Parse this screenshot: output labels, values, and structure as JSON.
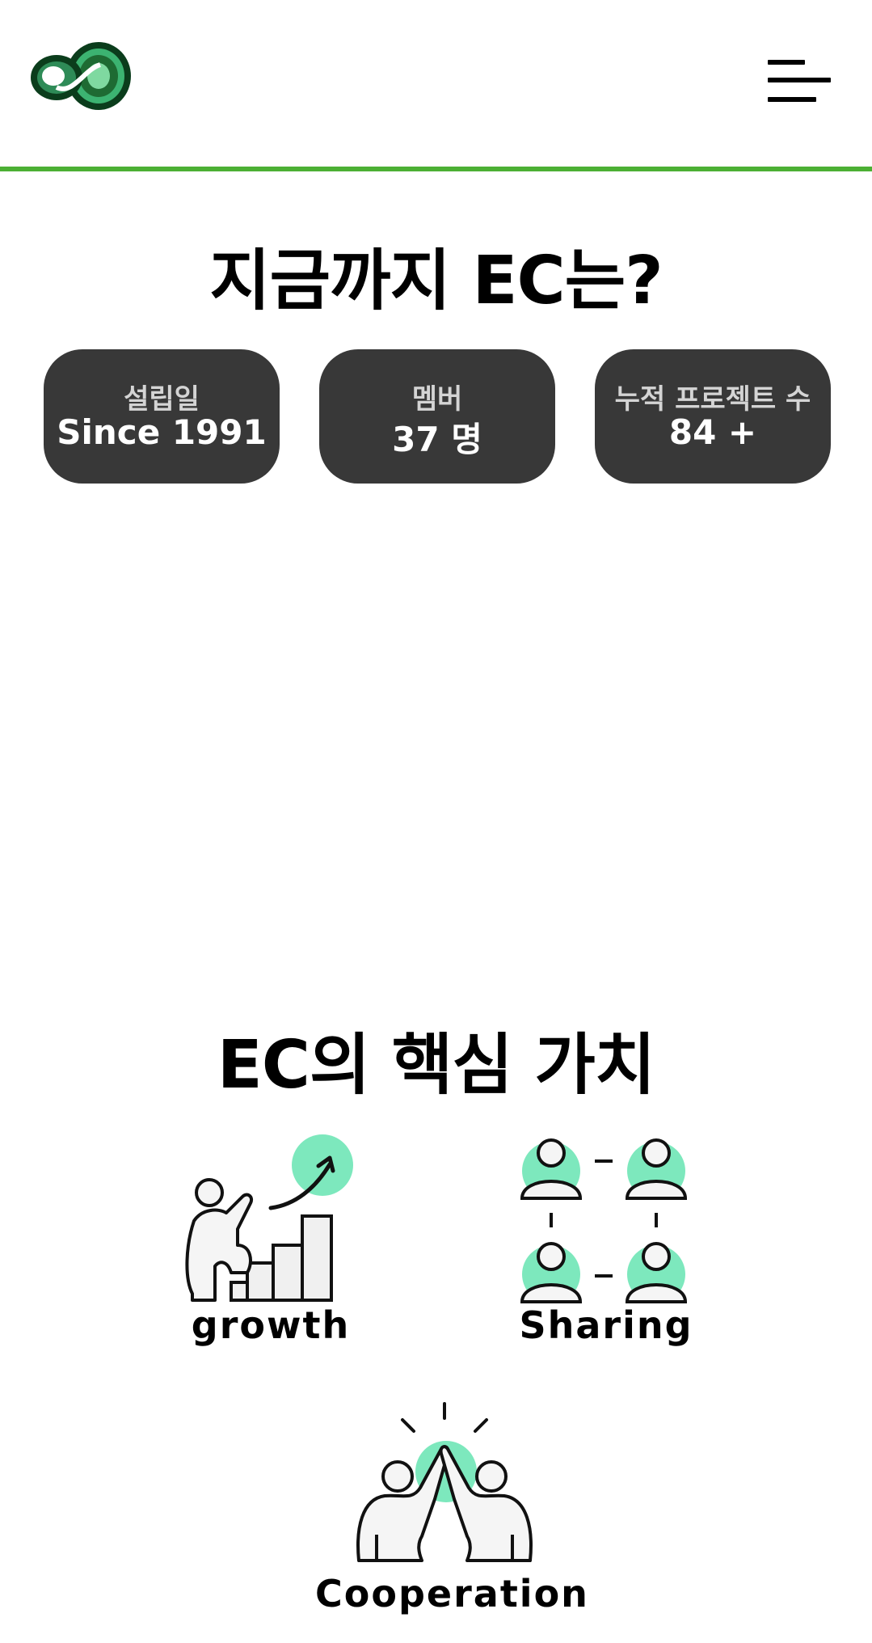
{
  "header": {
    "logo_icon": "infinity-logo-icon",
    "menu_icon": "hamburger-menu-icon",
    "accent_color": "#4cb034",
    "logo_colors": [
      "#1e6b33",
      "#3cb371",
      "#0b3d1c"
    ]
  },
  "stats": {
    "title": "지금까지 EC는?",
    "cards": [
      {
        "label": "설립일",
        "value": "Since 1991"
      },
      {
        "label": "멤버",
        "value": "37 명"
      },
      {
        "label": "누적 프로젝트 수",
        "value": "84 +"
      }
    ],
    "card_color": "#383838"
  },
  "values": {
    "title": "EC의 핵심 가치",
    "items": [
      {
        "label": "growth",
        "icon": "growth-chart-person-icon"
      },
      {
        "label": "Sharing",
        "icon": "people-network-icon"
      },
      {
        "label": "Cooperation",
        "icon": "high-five-icon"
      }
    ],
    "highlight_color": "#7de8bd"
  }
}
